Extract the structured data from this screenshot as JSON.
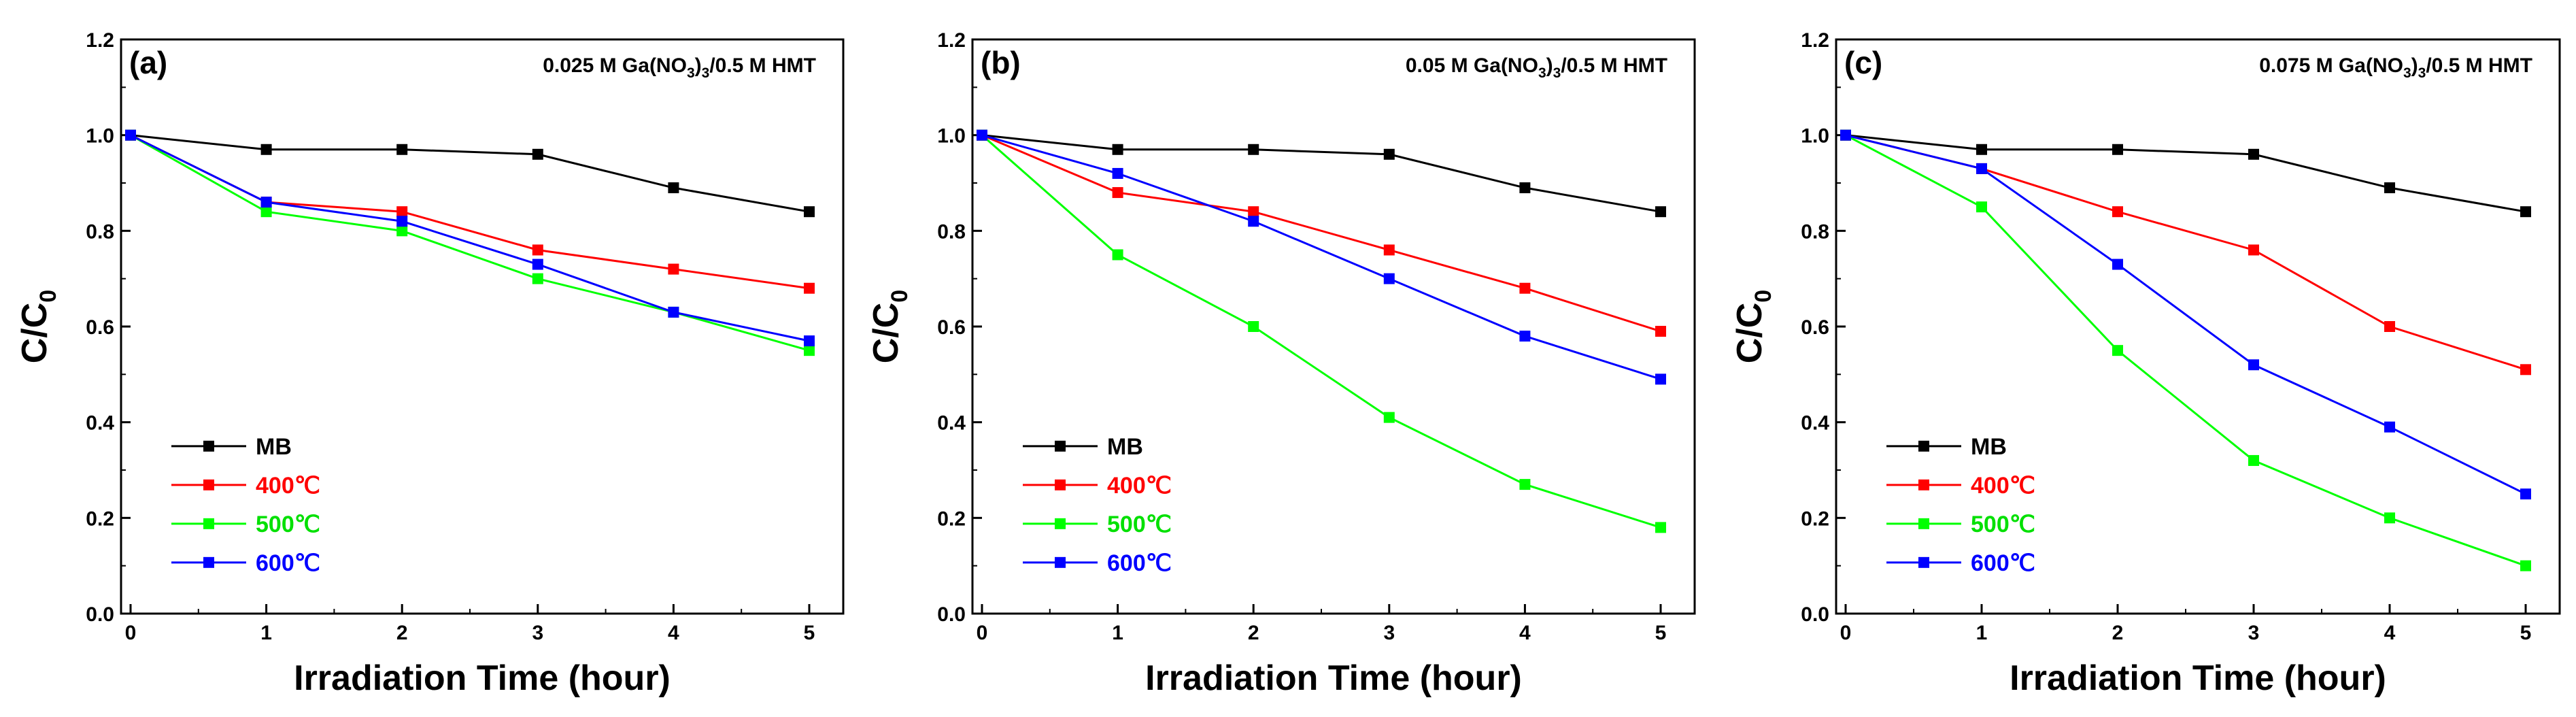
{
  "chart_data": [
    {
      "type": "line",
      "panel_label": "(a)",
      "annotation": {
        "pre": "0.025 M Ga(NO",
        "sub1": "3",
        "mid": ")",
        "sub2": "3",
        "post": "/0.5 M HMT"
      },
      "xlabel": "Irradiation Time (hour)",
      "ylabel": {
        "main": "C/C",
        "sub": "0"
      },
      "xlim": [
        0,
        5
      ],
      "ylim": [
        0.0,
        1.2
      ],
      "x_ticks": [
        0,
        1,
        2,
        3,
        4,
        5
      ],
      "y_ticks": [
        "0.0",
        "0.2",
        "0.4",
        "0.6",
        "0.8",
        "1.0",
        "1.2"
      ],
      "x": [
        0,
        1,
        2,
        3,
        4,
        5
      ],
      "legend_position": "lower-left",
      "series": [
        {
          "name": "MB",
          "color": "#000000",
          "values": [
            1.0,
            0.97,
            0.97,
            0.96,
            0.89,
            0.84
          ]
        },
        {
          "name": "400℃",
          "color": "#ff0000",
          "values": [
            1.0,
            0.86,
            0.84,
            0.76,
            0.72,
            0.68
          ]
        },
        {
          "name": "500℃",
          "color": "#00ff00",
          "values": [
            1.0,
            0.84,
            0.8,
            0.7,
            0.63,
            0.55
          ]
        },
        {
          "name": "600℃",
          "color": "#0000ff",
          "values": [
            1.0,
            0.86,
            0.82,
            0.73,
            0.63,
            0.57
          ]
        }
      ]
    },
    {
      "type": "line",
      "panel_label": "(b)",
      "annotation": {
        "pre": "0.05 M Ga(NO",
        "sub1": "3",
        "mid": ")",
        "sub2": "3",
        "post": "/0.5 M HMT"
      },
      "xlabel": "Irradiation Time (hour)",
      "ylabel": {
        "main": "C/C",
        "sub": "0"
      },
      "xlim": [
        0,
        5
      ],
      "ylim": [
        0.0,
        1.2
      ],
      "x_ticks": [
        0,
        1,
        2,
        3,
        4,
        5
      ],
      "y_ticks": [
        "0.0",
        "0.2",
        "0.4",
        "0.6",
        "0.8",
        "1.0",
        "1.2"
      ],
      "x": [
        0,
        1,
        2,
        3,
        4,
        5
      ],
      "legend_position": "lower-left",
      "series": [
        {
          "name": "MB",
          "color": "#000000",
          "values": [
            1.0,
            0.97,
            0.97,
            0.96,
            0.89,
            0.84
          ]
        },
        {
          "name": "400℃",
          "color": "#ff0000",
          "values": [
            1.0,
            0.88,
            0.84,
            0.76,
            0.68,
            0.59
          ]
        },
        {
          "name": "500℃",
          "color": "#00ff00",
          "values": [
            1.0,
            0.75,
            0.6,
            0.41,
            0.27,
            0.18
          ]
        },
        {
          "name": "600℃",
          "color": "#0000ff",
          "values": [
            1.0,
            0.92,
            0.82,
            0.7,
            0.58,
            0.49
          ]
        }
      ]
    },
    {
      "type": "line",
      "panel_label": "(c)",
      "annotation": {
        "pre": "0.075 M Ga(NO",
        "sub1": "3",
        "mid": ")",
        "sub2": "3",
        "post": "/0.5 M HMT"
      },
      "xlabel": "Irradiation Time (hour)",
      "ylabel": {
        "main": "C/C",
        "sub": "0"
      },
      "xlim": [
        0,
        5
      ],
      "ylim": [
        0.0,
        1.2
      ],
      "x_ticks": [
        0,
        1,
        2,
        3,
        4,
        5
      ],
      "y_ticks": [
        "0.0",
        "0.2",
        "0.4",
        "0.6",
        "0.8",
        "1.0",
        "1.2"
      ],
      "x": [
        0,
        1,
        2,
        3,
        4,
        5
      ],
      "legend_position": "lower-left",
      "series": [
        {
          "name": "MB",
          "color": "#000000",
          "values": [
            1.0,
            0.97,
            0.97,
            0.96,
            0.89,
            0.84
          ]
        },
        {
          "name": "400℃",
          "color": "#ff0000",
          "values": [
            1.0,
            0.93,
            0.84,
            0.76,
            0.6,
            0.51
          ]
        },
        {
          "name": "500℃",
          "color": "#00ff00",
          "values": [
            1.0,
            0.85,
            0.55,
            0.32,
            0.2,
            0.1
          ]
        },
        {
          "name": "600℃",
          "color": "#0000ff",
          "values": [
            1.0,
            0.93,
            0.73,
            0.52,
            0.39,
            0.25
          ]
        }
      ]
    }
  ]
}
